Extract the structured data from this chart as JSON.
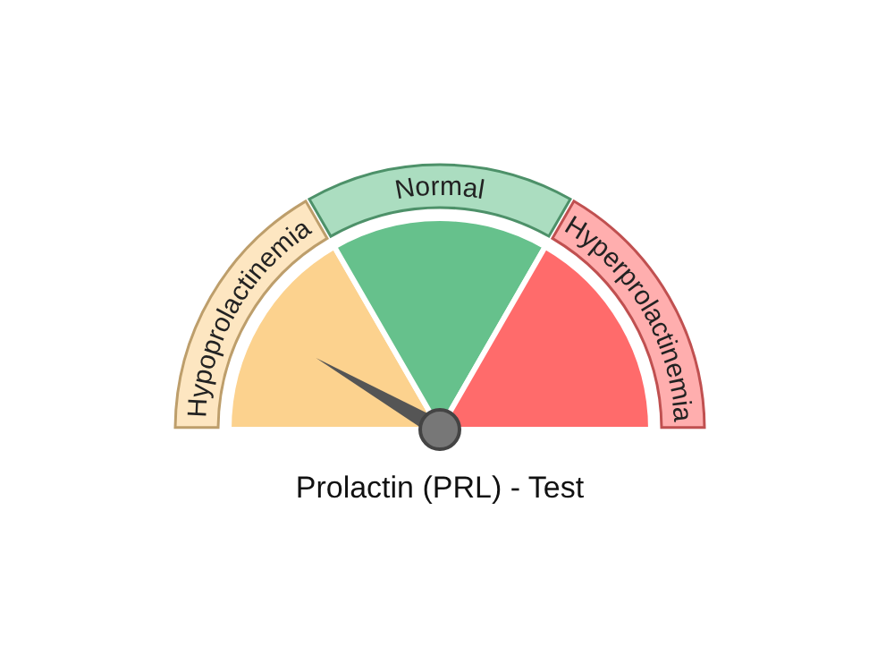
{
  "chart_data": {
    "type": "pie",
    "title": "Prolactin (PRL) - Test",
    "categories": [
      "Hypoprolactinemia",
      "Normal",
      "Hyperprolactinemia"
    ],
    "values": [
      33.33,
      33.33,
      33.34
    ],
    "colors": [
      "#fcd28e",
      "#66c18c",
      "#ff6b6b"
    ],
    "needle": "Hypoprolactinemia"
  }
}
